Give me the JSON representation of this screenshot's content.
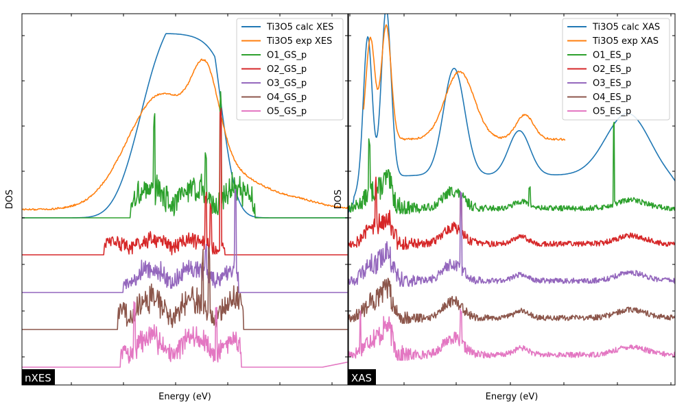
{
  "chart_data": [
    {
      "type": "line",
      "panel": "left",
      "badge": "nXES",
      "xlabel": "Energy (eV)",
      "ylabel": "DOS",
      "tick_labels_shown": false,
      "grid": false,
      "legend_placement": "top-right",
      "x": [
        0,
        3,
        6,
        9,
        12,
        15,
        18,
        21,
        24,
        27,
        30,
        33,
        36,
        39,
        42,
        45,
        48,
        51,
        54,
        57,
        60,
        63,
        66,
        69,
        72,
        75,
        78,
        81,
        84,
        87,
        90,
        93,
        96,
        100
      ],
      "series": [
        {
          "name": "Ti3O5 calc XES",
          "color": "#1f77b4",
          "values": [
            0,
            0,
            0.1,
            0.3,
            0.7,
            1.6,
            3.5,
            6.8,
            11.2,
            15.8,
            19.9,
            22.8,
            24.3,
            24.6,
            24.8,
            25.2,
            25.6,
            26.0,
            25.4,
            23.6,
            19.8,
            14.4,
            8.6,
            4.0,
            1.5,
            0.5,
            0.2,
            0.1,
            0,
            0,
            0,
            0,
            0,
            0
          ]
        },
        {
          "name": "Ti3O5 exp XES",
          "color": "#ff7f0e",
          "values": [
            0.3,
            0.5,
            0.8,
            1.1,
            1.5,
            2.2,
            3.2,
            4.8,
            6.9,
            9.6,
            12.8,
            14.8,
            16.6,
            18.2,
            20.1,
            21.8,
            23.6,
            25.8,
            25.2,
            23.7,
            20.4,
            15.9,
            11.0,
            7.3,
            4.8,
            3.2,
            2.3,
            1.6,
            1.1,
            0.8,
            0.5,
            0.3,
            0.2,
            0.1
          ]
        },
        {
          "name": "O1_GS_p",
          "color": "#2ca02c",
          "values": [
            0,
            0,
            0,
            0,
            0,
            0,
            0,
            0,
            0,
            0,
            0,
            0,
            0,
            0,
            0,
            0,
            0.8,
            0.2,
            0.6,
            0.2,
            0.3,
            0.1,
            0,
            0,
            0,
            0,
            0,
            0,
            0,
            0,
            0,
            0,
            0,
            0
          ]
        },
        {
          "name": "O2_GS_p",
          "color": "#d62728",
          "values": [
            0,
            0,
            0,
            0,
            0,
            0,
            0,
            0,
            0,
            0,
            0,
            0,
            0,
            0,
            0,
            0,
            0,
            0,
            0,
            0,
            0,
            0,
            0,
            0,
            0,
            0,
            0,
            0,
            0,
            0,
            0,
            0,
            0,
            0
          ]
        },
        {
          "name": "O3_GS_p",
          "color": "#9467bd",
          "values": [
            0,
            0,
            0,
            0,
            0,
            0,
            0,
            0,
            0,
            0,
            0,
            0,
            0,
            0,
            0,
            0,
            0,
            0,
            0,
            0,
            0,
            0,
            0,
            0,
            0,
            0,
            0,
            0,
            0,
            0,
            0,
            0,
            0,
            0
          ]
        },
        {
          "name": "O4_GS_p",
          "color": "#8c564b",
          "values": [
            0,
            0,
            0,
            0,
            0,
            0,
            0,
            0,
            0,
            0,
            0,
            0,
            0,
            0,
            0,
            0,
            0,
            0,
            0,
            0,
            0,
            0,
            0,
            0,
            0,
            0,
            0,
            0,
            0,
            0,
            0,
            0,
            0,
            0
          ]
        },
        {
          "name": "O5_GS_p",
          "color": "#e377c2",
          "values": [
            0,
            0,
            0,
            0,
            0,
            0,
            0,
            0,
            0,
            0,
            0,
            0,
            0,
            0,
            0,
            0,
            0,
            0,
            0,
            0,
            0,
            0,
            0,
            0,
            0,
            0,
            0,
            0,
            0,
            0,
            0,
            0,
            0,
            0
          ]
        }
      ],
      "spikes_note": "none"
    },
    {
      "type": "line",
      "panel": "right",
      "badge": "XAS",
      "xlabel": "Energy (eV)",
      "ylabel": "DOS",
      "tick_labels_shown": false,
      "grid": false,
      "legend_placement": "top-right",
      "x": [
        0,
        3,
        6,
        9,
        12,
        15,
        18,
        21,
        24,
        27,
        30,
        33,
        36,
        39,
        42,
        45,
        48,
        51,
        54,
        57,
        60,
        63,
        66,
        69,
        72,
        75,
        78,
        81,
        84,
        87,
        90,
        93,
        96,
        100
      ],
      "series": [
        {
          "name": "Ti3O5 calc XAS",
          "color": "#1f77b4",
          "values": [
            2,
            9,
            22,
            15,
            26,
            14,
            5,
            7,
            10,
            14,
            19,
            23,
            20,
            13,
            8,
            6,
            8,
            11,
            10,
            8,
            6,
            6,
            7,
            8,
            10,
            14,
            18,
            21,
            23,
            22,
            19,
            14,
            8,
            4
          ]
        },
        {
          "name": "Ti3O5 exp XAS",
          "color": "#ff7f0e",
          "values": [
            0,
            0,
            0,
            0,
            0,
            0,
            0,
            0,
            0,
            0,
            0,
            0,
            0,
            0,
            0,
            0,
            0,
            0,
            0,
            0,
            0,
            0,
            0,
            0,
            0,
            0,
            0,
            0,
            0,
            0,
            0,
            0,
            0,
            0
          ]
        },
        {
          "name": "O1_ES_p",
          "color": "#2ca02c",
          "values": [
            0,
            0,
            0,
            0,
            0,
            0,
            0,
            0,
            0,
            0,
            0,
            0,
            0,
            0,
            0,
            0,
            0,
            0,
            0,
            0,
            0,
            0,
            0,
            0,
            0,
            0,
            0,
            0,
            0,
            0,
            0,
            0,
            0,
            0
          ]
        },
        {
          "name": "O2_ES_p",
          "color": "#d62728",
          "values": [
            0,
            0,
            0,
            0,
            0,
            0,
            0,
            0,
            0,
            0,
            0,
            0,
            0,
            0,
            0,
            0,
            0,
            0,
            0,
            0,
            0,
            0,
            0,
            0,
            0,
            0,
            0,
            0,
            0,
            0,
            0,
            0,
            0,
            0
          ]
        },
        {
          "name": "O3_ES_p",
          "color": "#9467bd",
          "values": [
            0,
            0,
            0,
            0,
            0,
            0,
            0,
            0,
            0,
            0,
            0,
            0,
            0,
            0,
            0,
            0,
            0,
            0,
            0,
            0,
            0,
            0,
            0,
            0,
            0,
            0,
            0,
            0,
            0,
            0,
            0,
            0,
            0,
            0
          ]
        },
        {
          "name": "O4_ES_p",
          "color": "#8c564b",
          "values": [
            0,
            0,
            0,
            0,
            0,
            0,
            0,
            0,
            0,
            0,
            0,
            0,
            0,
            0,
            0,
            0,
            0,
            0,
            0,
            0,
            0,
            0,
            0,
            0,
            0,
            0,
            0,
            0,
            0,
            0,
            0,
            0,
            0,
            0
          ]
        },
        {
          "name": "O5_ES_p",
          "color": "#e377c2",
          "values": [
            0,
            0,
            0,
            0,
            0,
            0,
            0,
            0,
            0,
            0,
            0,
            0,
            0,
            0,
            0,
            0,
            0,
            0,
            0,
            0,
            0,
            0,
            0,
            0,
            0,
            0,
            0,
            0,
            0,
            0,
            0,
            0,
            0,
            0
          ]
        }
      ]
    }
  ]
}
